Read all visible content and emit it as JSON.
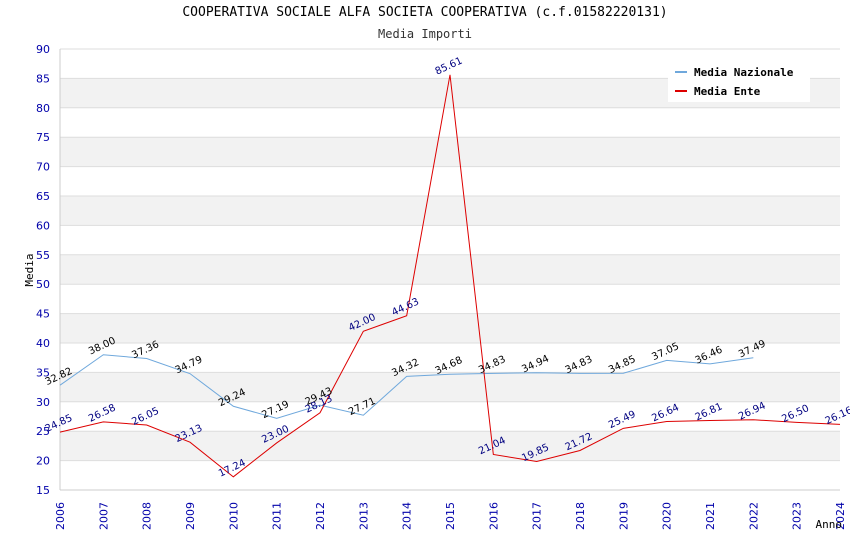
{
  "chart_data": {
    "type": "line",
    "title": "COOPERATIVA SOCIALE ALFA SOCIETA COOPERATIVA (c.f.01582220131)",
    "subtitle": "Media Importi",
    "xlabel": "Anno",
    "ylabel": "Media",
    "ylim": [
      15,
      90
    ],
    "yticks": [
      15,
      20,
      25,
      30,
      35,
      40,
      45,
      50,
      55,
      60,
      65,
      70,
      75,
      80,
      85,
      90
    ],
    "categories": [
      "2006",
      "2007",
      "2008",
      "2009",
      "2010",
      "2011",
      "2012",
      "2013",
      "2014",
      "2015",
      "2016",
      "2017",
      "2018",
      "2019",
      "2020",
      "2021",
      "2022",
      "2023",
      "2024"
    ],
    "grid": true,
    "legend_position": "top-right",
    "series": [
      {
        "name": "Media Nazionale",
        "color": "#6fa8dc",
        "values": [
          32.82,
          38.0,
          37.36,
          34.79,
          29.24,
          27.19,
          29.43,
          27.71,
          34.32,
          34.68,
          34.83,
          34.94,
          34.83,
          34.85,
          37.05,
          36.46,
          37.49,
          null,
          null
        ],
        "labels": [
          "32.82",
          "38.00",
          "37.36",
          "34.79",
          "29.24",
          "27.19",
          "29.43",
          "27.71",
          "34.32",
          "34.68",
          "34.83",
          "34.94",
          "34.83",
          "34.85",
          "37.05",
          "36.46",
          "37.49",
          "",
          ""
        ]
      },
      {
        "name": "Media Ente",
        "color": "#dd0000",
        "values": [
          24.85,
          26.58,
          26.05,
          23.13,
          17.24,
          23.0,
          28.13,
          42.0,
          44.63,
          85.61,
          21.04,
          19.85,
          21.72,
          25.49,
          26.64,
          26.81,
          26.94,
          26.5,
          26.16
        ],
        "labels": [
          "24.85",
          "26.58",
          "26.05",
          "23.13",
          "17.24",
          "23.00",
          "28.13",
          "42.00",
          "44.63",
          "85.61",
          "21.04",
          "19.85",
          "21.72",
          "25.49",
          "26.64",
          "26.81",
          "26.94",
          "26.50",
          "26.16"
        ]
      }
    ]
  }
}
